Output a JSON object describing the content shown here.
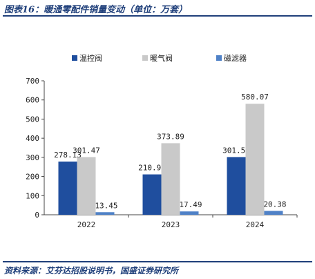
{
  "figure": {
    "title": "图表16：暖通零配件销量变动（单位：万套）",
    "source": "资料来源：艾芬达招股说明书，国盛证券研究所"
  },
  "chart_data": {
    "type": "bar",
    "title": "",
    "xlabel": "",
    "ylabel": "",
    "categories": [
      "2022",
      "2023",
      "2024"
    ],
    "series": [
      {
        "name": "温控阀",
        "values": [
          278.13,
          210.95,
          301.54
        ],
        "labels": [
          "278.13",
          "210.95",
          "301.54"
        ],
        "color": "#1f4e9e"
      },
      {
        "name": "暖气阀",
        "values": [
          301.47,
          373.89,
          580.07
        ],
        "labels": [
          "301.47",
          "373.89",
          "580.07"
        ],
        "color": "#c9c9c9"
      },
      {
        "name": "磁滤器",
        "values": [
          13.45,
          17.49,
          20.38
        ],
        "labels": [
          "13.45",
          "17.49",
          "20.38"
        ],
        "color": "#4f81c7"
      }
    ],
    "yticks": [
      "0",
      "100",
      "200",
      "300",
      "400",
      "500",
      "600",
      "700"
    ],
    "ylim": [
      0,
      700
    ],
    "grid": false,
    "legend_position": "top"
  }
}
